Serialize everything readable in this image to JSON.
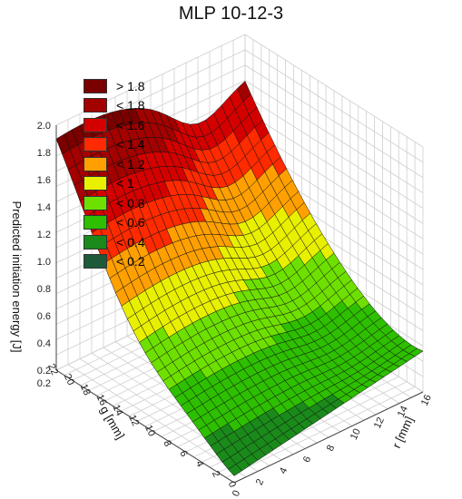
{
  "chart_data": {
    "type": "surface3d",
    "title": "MLP 10-12-3",
    "xlabel": "r [mm]",
    "ylabel": "g [mm]",
    "zlabel": "Predicted initiation energy [J]",
    "x_ticks": [
      "0",
      "2",
      "4",
      "6",
      "8",
      "10",
      "12",
      "14",
      "16"
    ],
    "y_ticks": [
      "0",
      "2",
      "4",
      "6",
      "8",
      "10",
      "12",
      "14",
      "16",
      "18",
      "20",
      "22"
    ],
    "z_ticks": [
      "0.2",
      "0.2",
      "0.4",
      "0.6",
      "0.8",
      "1.0",
      "1.2",
      "1.4",
      "1.6",
      "1.8",
      "2.0"
    ],
    "xlim": [
      0,
      16
    ],
    "ylim": [
      0,
      22
    ],
    "zlim": [
      0.2,
      2.0
    ],
    "grid": true,
    "legend_position": "top-left",
    "legend": [
      {
        "label": "> 1.8",
        "color": "#7a0000"
      },
      {
        "label": "< 1.8",
        "color": "#a30000"
      },
      {
        "label": "< 1.6",
        "color": "#d40000"
      },
      {
        "label": "< 1.4",
        "color": "#ff2a00"
      },
      {
        "label": "< 1.2",
        "color": "#ffa000"
      },
      {
        "label": "< 1",
        "color": "#e8f000"
      },
      {
        "label": "< 0.8",
        "color": "#6ee000"
      },
      {
        "label": "< 0.6",
        "color": "#2dbf00"
      },
      {
        "label": "< 0.4",
        "color": "#1a8a1a"
      },
      {
        "label": "< 0.2",
        "color": "#1e5a3a"
      }
    ],
    "surface_corners": {
      "r0_g0": 0.25,
      "r16_g0": 0.6,
      "r0_g22": 1.9,
      "r16_g22": 1.75
    }
  }
}
